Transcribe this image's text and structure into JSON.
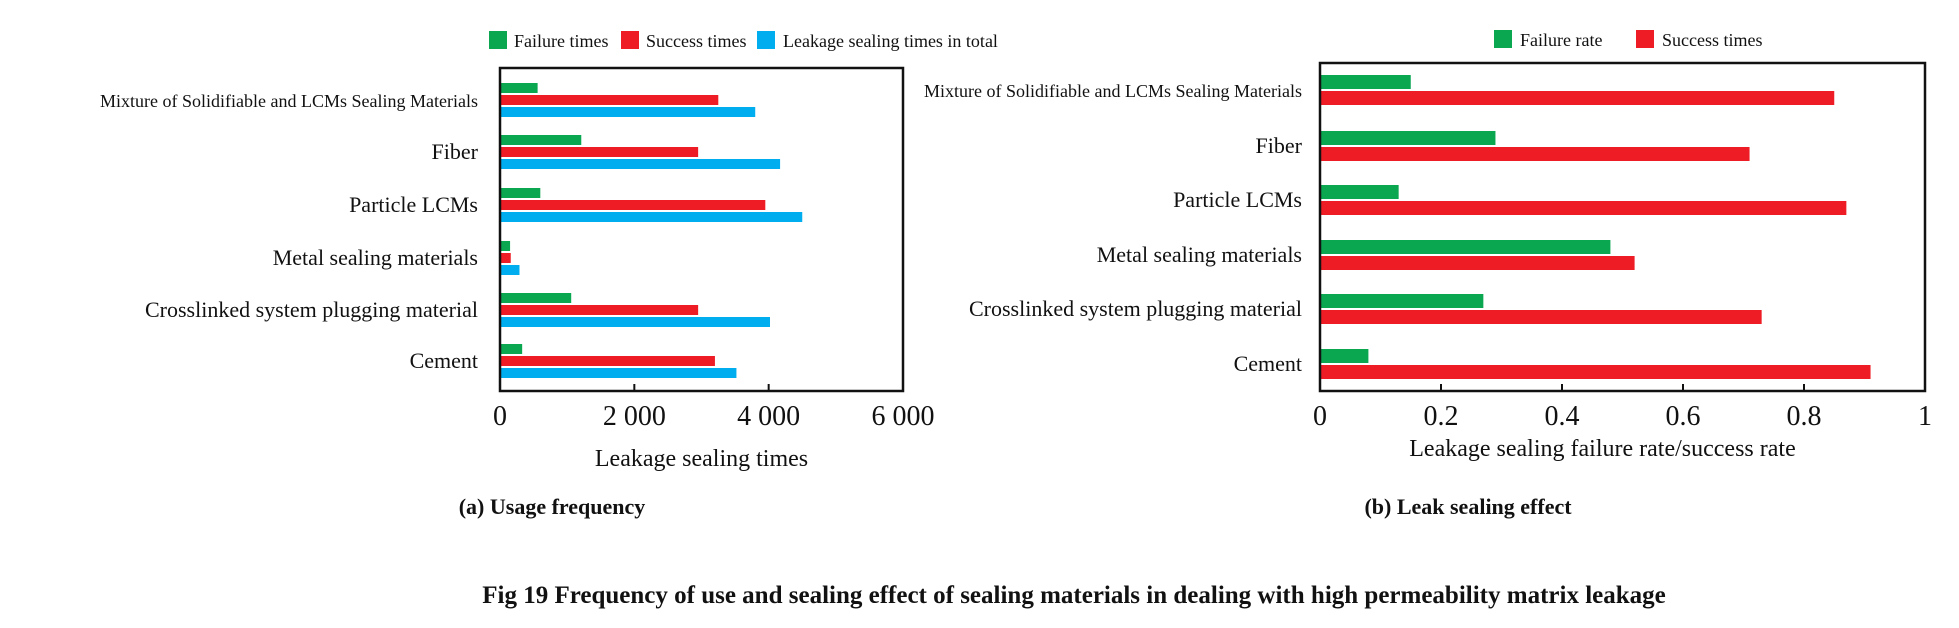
{
  "figure_caption": "Fig 19 Frequency of use and sealing effect of sealing materials in dealing with high permeability matrix leakage",
  "colors": {
    "failure": "#0aa650",
    "success": "#ee1c25",
    "total": "#00aeef"
  },
  "chart_data": [
    {
      "type": "bar",
      "orientation": "horizontal",
      "caption": "(a) Usage frequency",
      "xlabel": "Leakage sealing times",
      "ylabel": "",
      "xlim": [
        0,
        6000
      ],
      "x_ticks": [
        "0",
        "2 000",
        "4 000",
        "6 000"
      ],
      "legend_placement": "top",
      "categories": [
        "Mixture of Solidifiable and LCMs Sealing Materials",
        "Fiber",
        "Particle LCMs",
        "Metal sealing materials",
        "Crosslinked system plugging material",
        "Cement"
      ],
      "series": [
        {
          "name": "Failure times",
          "values": [
            560,
            1210,
            600,
            150,
            1060,
            330
          ]
        },
        {
          "name": "Success times",
          "values": [
            3250,
            2950,
            3950,
            160,
            2950,
            3200
          ]
        },
        {
          "name": "Leakage sealing times in total",
          "values": [
            3800,
            4170,
            4500,
            290,
            4020,
            3520
          ]
        }
      ]
    },
    {
      "type": "bar",
      "orientation": "horizontal",
      "caption": "(b) Leak sealing effect",
      "xlabel": "Leakage sealing failure rate/success rate",
      "ylabel": "",
      "xlim": [
        0,
        1
      ],
      "x_ticks": [
        "0",
        "0.2",
        "0.4",
        "0.6",
        "0.8",
        "1"
      ],
      "legend_placement": "top",
      "categories": [
        "Mixture of Solidifiable and LCMs Sealing Materials",
        "Fiber",
        "Particle LCMs",
        "Metal sealing materials",
        "Crosslinked system plugging material",
        "Cement"
      ],
      "series": [
        {
          "name": "Failure rate",
          "values": [
            0.15,
            0.29,
            0.13,
            0.48,
            0.27,
            0.08
          ]
        },
        {
          "name": "Success times",
          "values": [
            0.85,
            0.71,
            0.87,
            0.52,
            0.73,
            0.91
          ]
        }
      ]
    }
  ]
}
